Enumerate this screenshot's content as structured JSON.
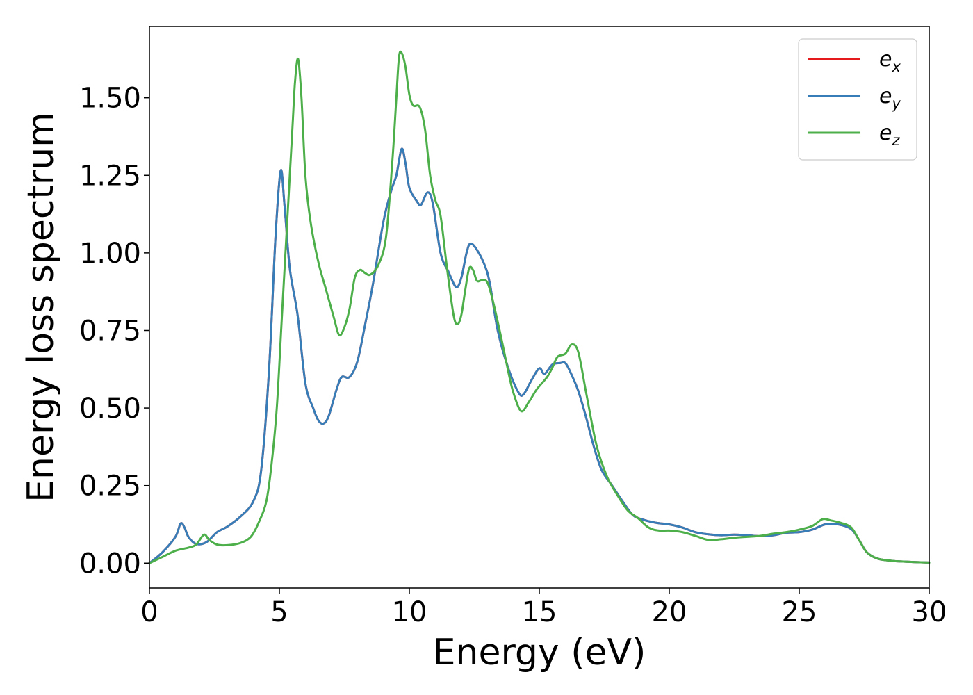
{
  "chart_data": {
    "type": "line",
    "title": "",
    "xlabel": "Energy (eV)",
    "ylabel": "Energy loss spectrum",
    "xlim": [
      0,
      30
    ],
    "ylim": [
      -0.08,
      1.73
    ],
    "xticks": [
      0,
      5,
      10,
      15,
      20,
      25,
      30
    ],
    "xtick_labels": [
      "0",
      "5",
      "10",
      "15",
      "20",
      "25",
      "30"
    ],
    "yticks": [
      0,
      0.25,
      0.5,
      0.75,
      1.0,
      1.25,
      1.5
    ],
    "ytick_labels": [
      "0.00",
      "0.25",
      "0.50",
      "0.75",
      "1.00",
      "1.25",
      "1.50"
    ],
    "grid": false,
    "legend": {
      "position": "top-right"
    },
    "series": [
      {
        "name": "e",
        "subscript": "x",
        "color": "#e41a1c",
        "points": [
          [
            0,
            0
          ],
          [
            0.5,
            0.035
          ],
          [
            1.0,
            0.085
          ],
          [
            1.2,
            0.128
          ],
          [
            1.35,
            0.115
          ],
          [
            1.5,
            0.085
          ],
          [
            1.8,
            0.062
          ],
          [
            2.2,
            0.068
          ],
          [
            2.6,
            0.1
          ],
          [
            3.0,
            0.118
          ],
          [
            3.5,
            0.15
          ],
          [
            4.0,
            0.2
          ],
          [
            4.3,
            0.3
          ],
          [
            4.6,
            0.62
          ],
          [
            4.85,
            1.05
          ],
          [
            5.05,
            1.265
          ],
          [
            5.2,
            1.15
          ],
          [
            5.4,
            0.95
          ],
          [
            5.7,
            0.8
          ],
          [
            6.0,
            0.58
          ],
          [
            6.3,
            0.5
          ],
          [
            6.5,
            0.46
          ],
          [
            6.7,
            0.45
          ],
          [
            6.9,
            0.475
          ],
          [
            7.2,
            0.56
          ],
          [
            7.4,
            0.6
          ],
          [
            7.7,
            0.6
          ],
          [
            8.0,
            0.65
          ],
          [
            8.3,
            0.77
          ],
          [
            8.6,
            0.9
          ],
          [
            9.0,
            1.1
          ],
          [
            9.3,
            1.2
          ],
          [
            9.5,
            1.25
          ],
          [
            9.7,
            1.335
          ],
          [
            9.85,
            1.29
          ],
          [
            10.0,
            1.21
          ],
          [
            10.3,
            1.165
          ],
          [
            10.45,
            1.155
          ],
          [
            10.7,
            1.195
          ],
          [
            10.9,
            1.16
          ],
          [
            11.2,
            1.0
          ],
          [
            11.5,
            0.94
          ],
          [
            11.8,
            0.89
          ],
          [
            12.0,
            0.92
          ],
          [
            12.2,
            1.0
          ],
          [
            12.35,
            1.03
          ],
          [
            12.6,
            1.01
          ],
          [
            12.9,
            0.96
          ],
          [
            13.1,
            0.9
          ],
          [
            13.4,
            0.75
          ],
          [
            13.8,
            0.63
          ],
          [
            14.2,
            0.55
          ],
          [
            14.4,
            0.545
          ],
          [
            14.7,
            0.59
          ],
          [
            15.0,
            0.628
          ],
          [
            15.2,
            0.61
          ],
          [
            15.5,
            0.64
          ],
          [
            15.8,
            0.645
          ],
          [
            16.0,
            0.645
          ],
          [
            16.2,
            0.615
          ],
          [
            16.5,
            0.555
          ],
          [
            16.8,
            0.47
          ],
          [
            17.1,
            0.375
          ],
          [
            17.4,
            0.3
          ],
          [
            17.8,
            0.25
          ],
          [
            18.2,
            0.2
          ],
          [
            18.6,
            0.155
          ],
          [
            19.0,
            0.14
          ],
          [
            19.5,
            0.13
          ],
          [
            20.0,
            0.125
          ],
          [
            20.5,
            0.115
          ],
          [
            21.0,
            0.1
          ],
          [
            21.5,
            0.093
          ],
          [
            22.0,
            0.09
          ],
          [
            22.5,
            0.092
          ],
          [
            23.0,
            0.09
          ],
          [
            23.5,
            0.087
          ],
          [
            24.0,
            0.09
          ],
          [
            24.5,
            0.098
          ],
          [
            25.0,
            0.1
          ],
          [
            25.5,
            0.108
          ],
          [
            26.0,
            0.125
          ],
          [
            26.5,
            0.125
          ],
          [
            27.0,
            0.11
          ],
          [
            27.3,
            0.075
          ],
          [
            27.6,
            0.035
          ],
          [
            28.0,
            0.015
          ],
          [
            28.5,
            0.008
          ],
          [
            29.0,
            0.005
          ],
          [
            30.0,
            0.002
          ]
        ]
      },
      {
        "name": "e",
        "subscript": "y",
        "color": "#377eb8",
        "points": [
          [
            0,
            0
          ],
          [
            0.5,
            0.035
          ],
          [
            1.0,
            0.085
          ],
          [
            1.2,
            0.128
          ],
          [
            1.35,
            0.115
          ],
          [
            1.5,
            0.085
          ],
          [
            1.8,
            0.062
          ],
          [
            2.2,
            0.068
          ],
          [
            2.6,
            0.1
          ],
          [
            3.0,
            0.118
          ],
          [
            3.5,
            0.15
          ],
          [
            4.0,
            0.2
          ],
          [
            4.3,
            0.3
          ],
          [
            4.6,
            0.62
          ],
          [
            4.85,
            1.05
          ],
          [
            5.05,
            1.265
          ],
          [
            5.2,
            1.15
          ],
          [
            5.4,
            0.95
          ],
          [
            5.7,
            0.8
          ],
          [
            6.0,
            0.58
          ],
          [
            6.3,
            0.5
          ],
          [
            6.5,
            0.46
          ],
          [
            6.7,
            0.45
          ],
          [
            6.9,
            0.475
          ],
          [
            7.2,
            0.56
          ],
          [
            7.4,
            0.6
          ],
          [
            7.7,
            0.6
          ],
          [
            8.0,
            0.65
          ],
          [
            8.3,
            0.77
          ],
          [
            8.6,
            0.9
          ],
          [
            9.0,
            1.1
          ],
          [
            9.3,
            1.2
          ],
          [
            9.5,
            1.25
          ],
          [
            9.7,
            1.335
          ],
          [
            9.85,
            1.29
          ],
          [
            10.0,
            1.21
          ],
          [
            10.3,
            1.165
          ],
          [
            10.45,
            1.155
          ],
          [
            10.7,
            1.195
          ],
          [
            10.9,
            1.16
          ],
          [
            11.2,
            1.0
          ],
          [
            11.5,
            0.94
          ],
          [
            11.8,
            0.89
          ],
          [
            12.0,
            0.92
          ],
          [
            12.2,
            1.0
          ],
          [
            12.35,
            1.03
          ],
          [
            12.6,
            1.01
          ],
          [
            12.9,
            0.96
          ],
          [
            13.1,
            0.9
          ],
          [
            13.4,
            0.75
          ],
          [
            13.8,
            0.63
          ],
          [
            14.2,
            0.55
          ],
          [
            14.4,
            0.545
          ],
          [
            14.7,
            0.59
          ],
          [
            15.0,
            0.628
          ],
          [
            15.2,
            0.61
          ],
          [
            15.5,
            0.64
          ],
          [
            15.8,
            0.645
          ],
          [
            16.0,
            0.645
          ],
          [
            16.2,
            0.615
          ],
          [
            16.5,
            0.555
          ],
          [
            16.8,
            0.47
          ],
          [
            17.1,
            0.375
          ],
          [
            17.4,
            0.3
          ],
          [
            17.8,
            0.25
          ],
          [
            18.2,
            0.2
          ],
          [
            18.6,
            0.155
          ],
          [
            19.0,
            0.14
          ],
          [
            19.5,
            0.13
          ],
          [
            20.0,
            0.125
          ],
          [
            20.5,
            0.115
          ],
          [
            21.0,
            0.1
          ],
          [
            21.5,
            0.093
          ],
          [
            22.0,
            0.09
          ],
          [
            22.5,
            0.092
          ],
          [
            23.0,
            0.09
          ],
          [
            23.5,
            0.087
          ],
          [
            24.0,
            0.09
          ],
          [
            24.5,
            0.098
          ],
          [
            25.0,
            0.1
          ],
          [
            25.5,
            0.108
          ],
          [
            26.0,
            0.125
          ],
          [
            26.5,
            0.125
          ],
          [
            27.0,
            0.11
          ],
          [
            27.3,
            0.075
          ],
          [
            27.6,
            0.035
          ],
          [
            28.0,
            0.015
          ],
          [
            28.5,
            0.008
          ],
          [
            29.0,
            0.005
          ],
          [
            30.0,
            0.002
          ]
        ]
      },
      {
        "name": "e",
        "subscript": "z",
        "color": "#4daf4a",
        "points": [
          [
            0,
            0
          ],
          [
            0.5,
            0.02
          ],
          [
            1.0,
            0.04
          ],
          [
            1.5,
            0.05
          ],
          [
            1.8,
            0.06
          ],
          [
            2.1,
            0.092
          ],
          [
            2.3,
            0.075
          ],
          [
            2.6,
            0.06
          ],
          [
            3.0,
            0.058
          ],
          [
            3.5,
            0.065
          ],
          [
            3.9,
            0.085
          ],
          [
            4.2,
            0.13
          ],
          [
            4.5,
            0.2
          ],
          [
            4.7,
            0.32
          ],
          [
            4.9,
            0.5
          ],
          [
            5.1,
            0.8
          ],
          [
            5.3,
            1.1
          ],
          [
            5.5,
            1.4
          ],
          [
            5.6,
            1.55
          ],
          [
            5.72,
            1.625
          ],
          [
            5.85,
            1.5
          ],
          [
            6.0,
            1.25
          ],
          [
            6.2,
            1.1
          ],
          [
            6.5,
            0.97
          ],
          [
            6.8,
            0.88
          ],
          [
            7.1,
            0.79
          ],
          [
            7.3,
            0.735
          ],
          [
            7.5,
            0.76
          ],
          [
            7.7,
            0.82
          ],
          [
            7.9,
            0.92
          ],
          [
            8.1,
            0.945
          ],
          [
            8.3,
            0.935
          ],
          [
            8.5,
            0.93
          ],
          [
            8.8,
            0.96
          ],
          [
            9.1,
            1.05
          ],
          [
            9.35,
            1.3
          ],
          [
            9.5,
            1.5
          ],
          [
            9.6,
            1.63
          ],
          [
            9.7,
            1.645
          ],
          [
            9.85,
            1.6
          ],
          [
            10.0,
            1.51
          ],
          [
            10.15,
            1.475
          ],
          [
            10.4,
            1.47
          ],
          [
            10.6,
            1.4
          ],
          [
            10.8,
            1.25
          ],
          [
            11.0,
            1.17
          ],
          [
            11.2,
            1.12
          ],
          [
            11.45,
            0.95
          ],
          [
            11.7,
            0.8
          ],
          [
            11.85,
            0.77
          ],
          [
            12.0,
            0.8
          ],
          [
            12.15,
            0.88
          ],
          [
            12.3,
            0.95
          ],
          [
            12.45,
            0.945
          ],
          [
            12.6,
            0.91
          ],
          [
            12.8,
            0.912
          ],
          [
            13.0,
            0.905
          ],
          [
            13.2,
            0.85
          ],
          [
            13.5,
            0.74
          ],
          [
            13.8,
            0.62
          ],
          [
            14.0,
            0.55
          ],
          [
            14.3,
            0.49
          ],
          [
            14.6,
            0.52
          ],
          [
            14.9,
            0.56
          ],
          [
            15.3,
            0.6
          ],
          [
            15.5,
            0.63
          ],
          [
            15.7,
            0.665
          ],
          [
            16.0,
            0.675
          ],
          [
            16.25,
            0.705
          ],
          [
            16.5,
            0.68
          ],
          [
            16.8,
            0.55
          ],
          [
            17.2,
            0.38
          ],
          [
            17.6,
            0.28
          ],
          [
            18.0,
            0.22
          ],
          [
            18.4,
            0.17
          ],
          [
            18.8,
            0.145
          ],
          [
            19.2,
            0.115
          ],
          [
            19.6,
            0.105
          ],
          [
            20.0,
            0.105
          ],
          [
            20.5,
            0.1
          ],
          [
            21.0,
            0.088
          ],
          [
            21.5,
            0.075
          ],
          [
            22.0,
            0.077
          ],
          [
            22.5,
            0.082
          ],
          [
            23.0,
            0.085
          ],
          [
            23.5,
            0.088
          ],
          [
            24.0,
            0.095
          ],
          [
            24.5,
            0.1
          ],
          [
            25.0,
            0.108
          ],
          [
            25.5,
            0.12
          ],
          [
            25.9,
            0.142
          ],
          [
            26.2,
            0.138
          ],
          [
            26.6,
            0.13
          ],
          [
            27.0,
            0.115
          ],
          [
            27.3,
            0.075
          ],
          [
            27.6,
            0.035
          ],
          [
            28.0,
            0.015
          ],
          [
            28.5,
            0.008
          ],
          [
            29.0,
            0.005
          ],
          [
            30.0,
            0.002
          ]
        ]
      }
    ]
  }
}
